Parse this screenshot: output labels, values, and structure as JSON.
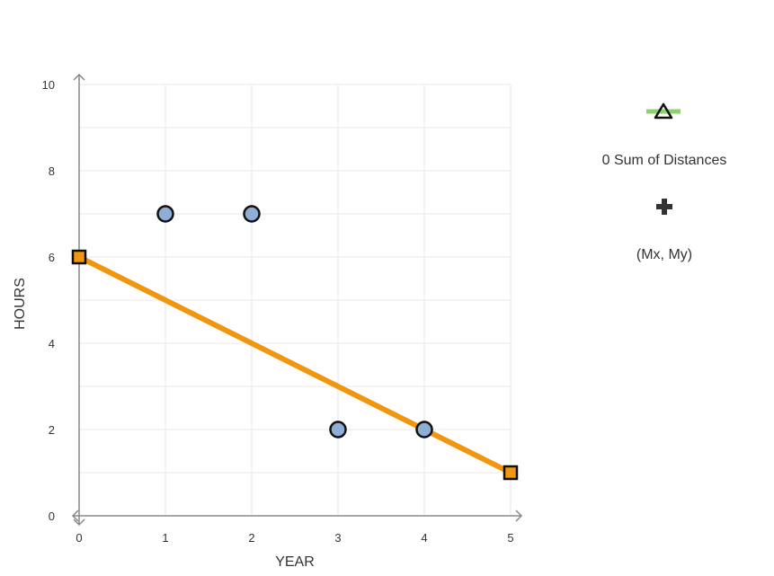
{
  "chart_data": {
    "type": "scatter",
    "xlabel": "YEAR",
    "ylabel": "HOURS",
    "xlim": [
      0,
      5
    ],
    "ylim": [
      0,
      10
    ],
    "x_ticks": [
      0,
      1,
      2,
      3,
      4,
      5
    ],
    "y_ticks": [
      0,
      2,
      4,
      6,
      8,
      10
    ],
    "grid": true,
    "points": [
      {
        "x": 1,
        "y": 7
      },
      {
        "x": 2,
        "y": 7
      },
      {
        "x": 3,
        "y": 2
      },
      {
        "x": 4,
        "y": 2
      }
    ],
    "line": {
      "start": {
        "x": 0,
        "y": 6
      },
      "end": {
        "x": 5,
        "y": 1
      }
    },
    "colors": {
      "point_fill": "#8eaed3",
      "line": "#f2960f",
      "handle_fill": "#f2960f",
      "grid": "#eeeeee",
      "axis": "#888888"
    }
  },
  "legend": {
    "sum_label": "0 Sum of Distances",
    "midpoint_label": "(Mx, My)",
    "triangle_icon": "triangle-ruler-icon",
    "midpoint_icon": "plus-icon",
    "triangle_color": "#8cd16b"
  }
}
